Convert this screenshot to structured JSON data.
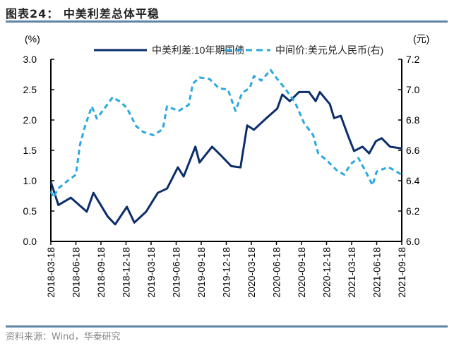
{
  "title": "图表24：  中美利差总体平稳",
  "source": "资料来源：Wind，华泰研究",
  "colors": {
    "spread": "#0b2e6b",
    "cny": "#29a8e0",
    "rule": "#5f86a6"
  },
  "chart_data": {
    "type": "line",
    "x_unit": "months since 2018-03-18",
    "xlim": [
      0,
      42
    ],
    "x_ticks": [
      0,
      3,
      6,
      9,
      12,
      15,
      18,
      21,
      24,
      27,
      30,
      33,
      36,
      39,
      42
    ],
    "x_tick_labels": [
      "2018-03-18",
      "2018-06-18",
      "2018-09-18",
      "2018-12-18",
      "2019-03-18",
      "2019-06-18",
      "2019-09-18",
      "2019-12-18",
      "2020-03-18",
      "2020-06-18",
      "2020-09-18",
      "2020-12-18",
      "2021-03-18",
      "2021-06-18",
      "2021-09-18"
    ],
    "ylabel_left": "(%)",
    "ylabel_right": "(元)",
    "ylim_left": [
      0,
      3.0
    ],
    "ylim_right": [
      6.0,
      7.2
    ],
    "y_ticks_left": [
      "0.0",
      "0.5",
      "1.0",
      "1.5",
      "2.0",
      "2.5",
      "3.0"
    ],
    "y_ticks_right": [
      "6.0",
      "6.2",
      "6.4",
      "6.6",
      "6.8",
      "7.0",
      "7.2"
    ],
    "legend_position": "top",
    "series": [
      {
        "name": "中美利差:10年期国债",
        "axis": "left",
        "style": "solid",
        "x": [
          0,
          0.9,
          2.4,
          4.3,
          5.1,
          6.8,
          7.7,
          9.1,
          10,
          11.4,
          12.8,
          13.9,
          15.2,
          15.9,
          17.3,
          17.8,
          19.3,
          20.4,
          21.6,
          22.7,
          23.5,
          24.3,
          25.8,
          27.1,
          27.7,
          28.6,
          29.7,
          30.9,
          31.7,
          32.2,
          33.4,
          33.9,
          34.7,
          35.6,
          36.3,
          37.3,
          38.1,
          38.9,
          39.6,
          40.6,
          42
        ],
        "values": [
          0.98,
          0.6,
          0.72,
          0.49,
          0.8,
          0.41,
          0.28,
          0.57,
          0.31,
          0.49,
          0.8,
          0.87,
          1.22,
          1.07,
          1.56,
          1.3,
          1.56,
          1.41,
          1.24,
          1.22,
          1.91,
          1.84,
          2.03,
          2.19,
          2.42,
          2.31,
          2.46,
          2.46,
          2.31,
          2.46,
          2.26,
          2.03,
          2.07,
          1.73,
          1.49,
          1.56,
          1.45,
          1.65,
          1.7,
          1.56,
          1.53
        ]
      },
      {
        "name": "中间价:美元兑人民币(右)",
        "axis": "right",
        "style": "dashed",
        "x": [
          0,
          0.3,
          0.9,
          1.8,
          3.0,
          3.5,
          4.1,
          4.9,
          5.5,
          6.6,
          7.4,
          8.3,
          9.1,
          10.2,
          11.1,
          12.3,
          13.4,
          13.9,
          15.3,
          16.5,
          17,
          17.8,
          19,
          20.1,
          21.2,
          22.1,
          22.9,
          23.8,
          24.3,
          25.2,
          26.3,
          27.1,
          28,
          29.2,
          30.3,
          31.4,
          32,
          33.1,
          34.2,
          35.1,
          35.9,
          36.8,
          37.6,
          38.5,
          39,
          40.4,
          42
        ],
        "values": [
          6.33,
          6.29,
          6.35,
          6.39,
          6.44,
          6.64,
          6.76,
          6.89,
          6.81,
          6.89,
          6.95,
          6.92,
          6.88,
          6.76,
          6.72,
          6.7,
          6.74,
          6.89,
          6.86,
          6.9,
          7.04,
          7.08,
          7.07,
          7.01,
          7.0,
          6.86,
          6.98,
          7.01,
          7.09,
          7.06,
          7.13,
          7.07,
          7.01,
          6.92,
          6.78,
          6.7,
          6.58,
          6.53,
          6.47,
          6.44,
          6.51,
          6.55,
          6.47,
          6.37,
          6.46,
          6.49,
          6.44
        ]
      }
    ]
  }
}
